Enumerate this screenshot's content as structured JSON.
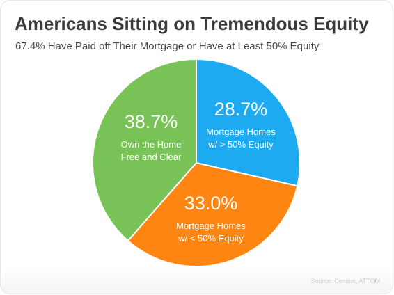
{
  "chart_data": {
    "type": "pie",
    "title": "Americans Sitting on Tremendous Equity",
    "subtitle": "67.4% Have Paid off Their Mortgage or Have at Least 50% Equity",
    "slices": [
      {
        "value": 28.7,
        "value_label": "28.7%",
        "label_lines": [
          "Mortgage Homes",
          "w/ > 50% Equity"
        ],
        "color": "#1eaaf0"
      },
      {
        "value": 33.0,
        "value_label": "33.0%",
        "label_lines": [
          "Mortgage Homes",
          "w/ < 50% Equity"
        ],
        "color": "#ff8513"
      },
      {
        "value": 38.7,
        "value_label": "38.7%",
        "label_lines": [
          "Own the Home",
          "Free and Clear"
        ],
        "color": "#78c257"
      }
    ],
    "start": "12 o'clock",
    "direction": "clockwise",
    "source": "Source: Census, ATTOM"
  }
}
